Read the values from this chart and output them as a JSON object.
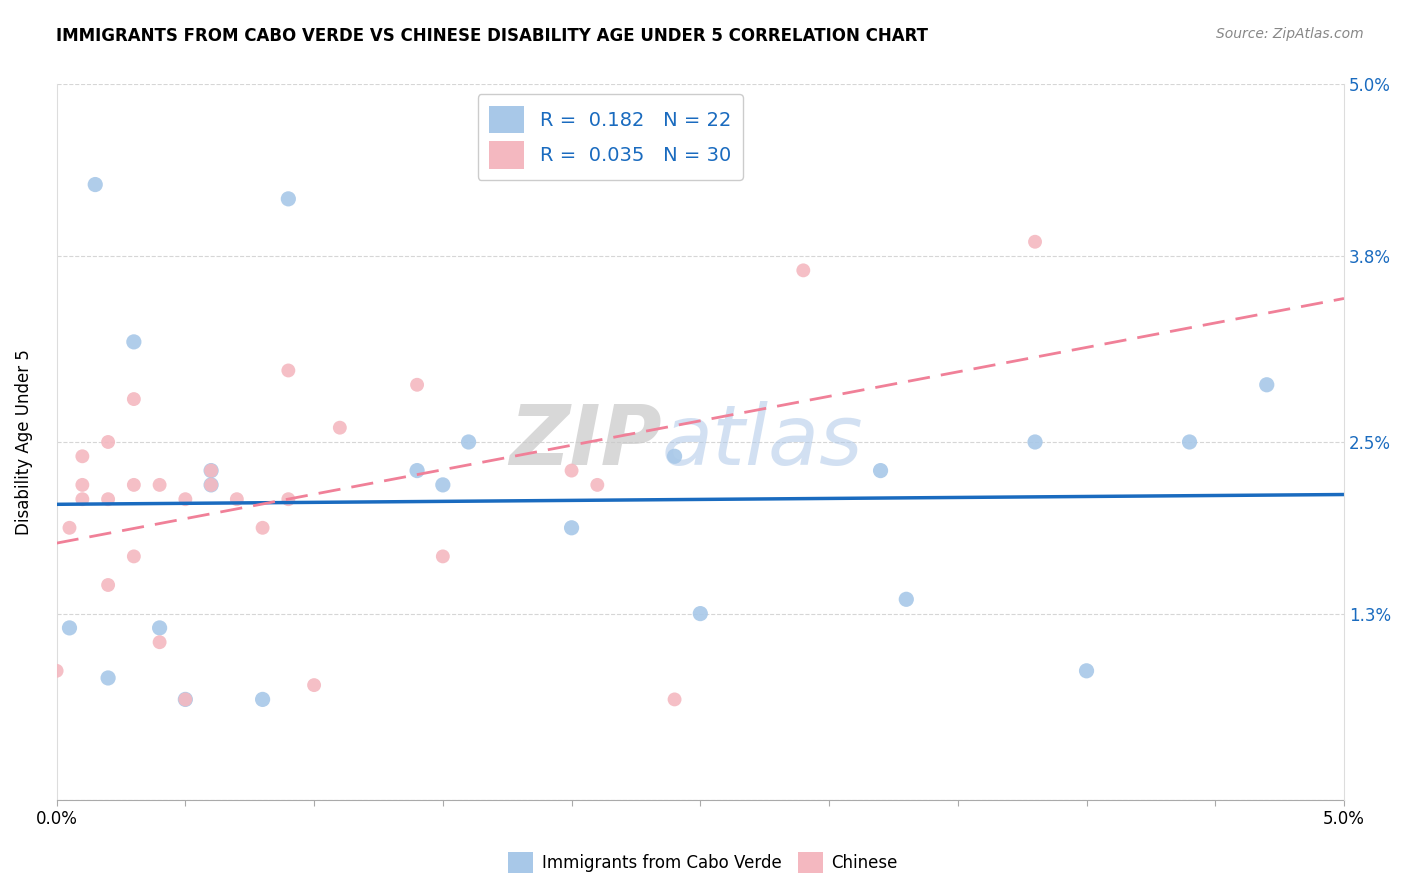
{
  "title": "IMMIGRANTS FROM CABO VERDE VS CHINESE DISABILITY AGE UNDER 5 CORRELATION CHART",
  "source": "Source: ZipAtlas.com",
  "ylabel": "Disability Age Under 5",
  "xmin": 0.0,
  "xmax": 0.05,
  "ymin": 0.0,
  "ymax": 0.05,
  "yticks": [
    0.0,
    0.013,
    0.025,
    0.038,
    0.05
  ],
  "ytick_labels": [
    "",
    "1.3%",
    "2.5%",
    "3.8%",
    "5.0%"
  ],
  "cabo_verde_color": "#a8c8e8",
  "chinese_color": "#f4b8c0",
  "trendline_cabo_color": "#1a6bbf",
  "trendline_chinese_color": "#f08098",
  "cabo_verde_x": [
    0.0005,
    0.0015,
    0.002,
    0.003,
    0.004,
    0.005,
    0.006,
    0.006,
    0.008,
    0.009,
    0.014,
    0.015,
    0.016,
    0.02,
    0.024,
    0.025,
    0.032,
    0.033,
    0.038,
    0.04,
    0.044,
    0.047
  ],
  "cabo_verde_y": [
    0.012,
    0.043,
    0.0085,
    0.032,
    0.012,
    0.007,
    0.022,
    0.023,
    0.007,
    0.042,
    0.023,
    0.022,
    0.025,
    0.019,
    0.024,
    0.013,
    0.023,
    0.014,
    0.025,
    0.009,
    0.025,
    0.029
  ],
  "chinese_x": [
    0.0,
    0.0005,
    0.001,
    0.001,
    0.001,
    0.002,
    0.002,
    0.002,
    0.003,
    0.003,
    0.003,
    0.004,
    0.004,
    0.005,
    0.005,
    0.006,
    0.006,
    0.007,
    0.008,
    0.009,
    0.009,
    0.01,
    0.011,
    0.014,
    0.015,
    0.02,
    0.021,
    0.024,
    0.029,
    0.038
  ],
  "chinese_y": [
    0.009,
    0.019,
    0.021,
    0.024,
    0.022,
    0.015,
    0.021,
    0.025,
    0.017,
    0.022,
    0.028,
    0.011,
    0.022,
    0.021,
    0.007,
    0.022,
    0.023,
    0.021,
    0.019,
    0.021,
    0.03,
    0.008,
    0.026,
    0.029,
    0.017,
    0.023,
    0.022,
    0.007,
    0.037,
    0.039
  ],
  "cabo_verde_marker_size": 120,
  "chinese_marker_size": 100,
  "background_color": "#ffffff",
  "grid_color": "#cccccc",
  "watermark_zip": "ZIP",
  "watermark_atlas": "atlas",
  "legend_label1": "R =  0.182   N = 22",
  "legend_label2": "R =  0.035   N = 30",
  "bottom_legend1": "Immigrants from Cabo Verde",
  "bottom_legend2": "Chinese"
}
